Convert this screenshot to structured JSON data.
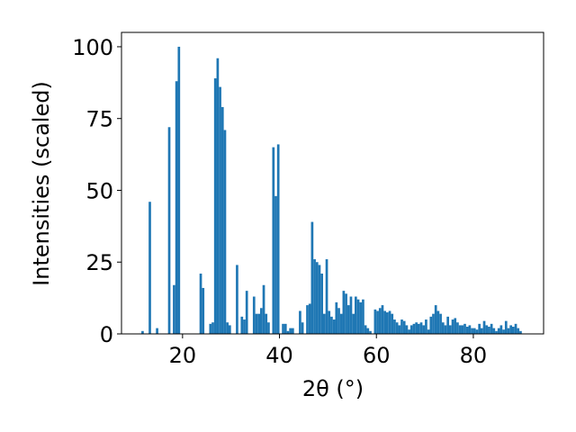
{
  "chart_data": {
    "type": "histogram",
    "xlabel": "2θ (°)",
    "ylabel": "Intensities (scaled)",
    "color": "#1f77b4",
    "bins": [
      10,
      10.5,
      11,
      11.5,
      12,
      12.5,
      13,
      13.5,
      14,
      14.5,
      15,
      15.5,
      16,
      16.5,
      17,
      17.5,
      18,
      18.5,
      19,
      19.5,
      20,
      20.5,
      21,
      21.5,
      22,
      22.5,
      23,
      23.5,
      24,
      24.5,
      25,
      25.5,
      26,
      26.5,
      27,
      27.5,
      28,
      28.5,
      29,
      29.5,
      30,
      30.5,
      31,
      31.5,
      32,
      32.5,
      33,
      33.5,
      34,
      34.5,
      35,
      35.5,
      36,
      36.5,
      37,
      37.5,
      38,
      38.5,
      39,
      39.5,
      40,
      40.5,
      41,
      41.5,
      42,
      42.5,
      43,
      43.5,
      44,
      44.5,
      45,
      45.5,
      46,
      46.5,
      47,
      47.5,
      48,
      48.5,
      49,
      49.5,
      50,
      50.5,
      51,
      51.5,
      52,
      52.5,
      53,
      53.5,
      54,
      54.5,
      55,
      55.5,
      56,
      56.5,
      57,
      57.5,
      58,
      58.5,
      59,
      59.5,
      60,
      60.5,
      61,
      61.5,
      62,
      62.5,
      63,
      63.5,
      64,
      64.5,
      65,
      65.5,
      66,
      66.5,
      67,
      67.5,
      68,
      68.5,
      69,
      69.5,
      70,
      70.5,
      71,
      71.5,
      72,
      72.5,
      73,
      73.5,
      74,
      74.5,
      75,
      75.5,
      76,
      76.5,
      77,
      77.5,
      78,
      78.5,
      79,
      79.5,
      80,
      80.5,
      81,
      81.5,
      82,
      82.5,
      83,
      83.5,
      84,
      84.5,
      85,
      85.5,
      86,
      86.5,
      87,
      87.5,
      88,
      88.5,
      89,
      89.5,
      90
    ],
    "values": [
      0,
      0,
      0,
      1,
      0,
      0,
      46,
      0,
      0,
      2,
      0,
      0,
      0,
      0,
      72,
      0,
      17,
      88,
      100,
      0,
      0,
      0,
      0,
      0,
      0,
      0,
      0,
      21,
      16,
      0,
      0,
      3.5,
      4,
      89,
      96,
      86,
      79,
      71,
      4,
      3,
      0,
      0,
      24,
      0,
      6,
      5,
      15,
      0,
      0,
      13,
      7,
      7,
      9,
      17,
      7,
      4,
      0,
      65,
      48,
      66,
      0,
      3.5,
      3.5,
      1,
      2,
      2,
      0,
      0,
      8,
      4,
      0,
      10,
      10.5,
      39,
      26,
      25,
      24,
      21,
      7,
      26,
      8,
      6,
      5,
      11,
      9,
      7,
      15,
      14,
      10,
      13,
      7,
      13,
      12,
      11,
      12,
      3,
      2,
      1,
      0,
      8.5,
      8,
      9,
      10,
      8,
      7.5,
      8,
      7,
      5,
      4,
      3,
      5,
      4.5,
      3,
      1.5,
      3,
      3.5,
      4,
      3.5,
      4,
      3,
      5,
      1.5,
      6,
      7,
      10,
      8,
      7,
      4,
      3,
      6,
      3,
      5,
      5.5,
      4,
      3,
      3,
      3.5,
      2.5,
      3,
      2,
      2,
      1.5,
      3.5,
      2,
      4.5,
      3,
      2.5,
      3.5,
      2,
      1,
      2,
      3,
      1.5,
      4.5,
      2,
      3,
      2.5,
      3.5,
      2,
      1
    ],
    "xlim": [
      7.4,
      94.5
    ],
    "ylim": [
      0,
      105
    ],
    "xticks": [
      20,
      40,
      60,
      80
    ],
    "yticks": [
      0,
      25,
      50,
      75,
      100
    ]
  }
}
